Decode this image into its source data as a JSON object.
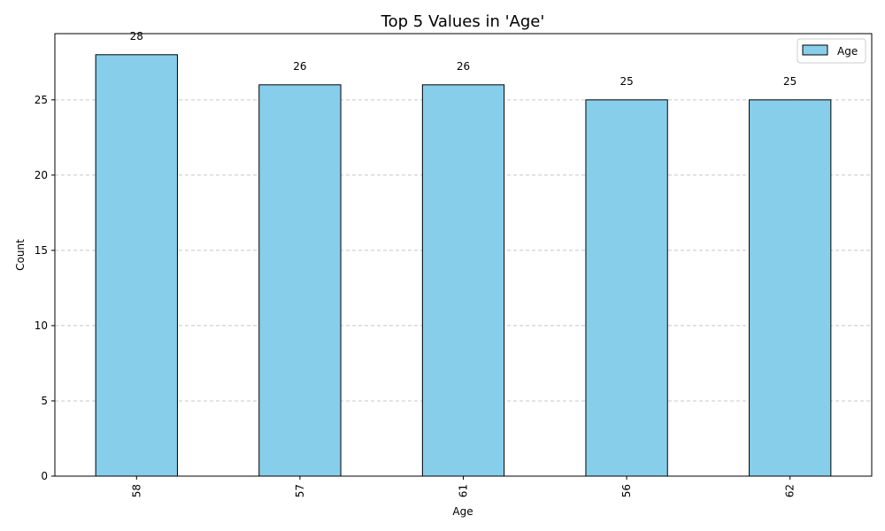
{
  "chart_data": {
    "type": "bar",
    "title": "Top 5 Values in 'Age'",
    "xlabel": "Age",
    "ylabel": "Count",
    "categories": [
      "58",
      "57",
      "61",
      "56",
      "62"
    ],
    "series": [
      {
        "name": "Age",
        "values": [
          28,
          26,
          26,
          25,
          25
        ]
      }
    ],
    "ylim": [
      0,
      29.4
    ],
    "yticks": [
      0,
      5,
      10,
      15,
      20,
      25
    ],
    "grid": "y-dashed",
    "legend_position": "top-right",
    "bar_color": "#87ceeb",
    "bar_edge_color": "#000000",
    "grid_color": "#c8c8c8"
  }
}
